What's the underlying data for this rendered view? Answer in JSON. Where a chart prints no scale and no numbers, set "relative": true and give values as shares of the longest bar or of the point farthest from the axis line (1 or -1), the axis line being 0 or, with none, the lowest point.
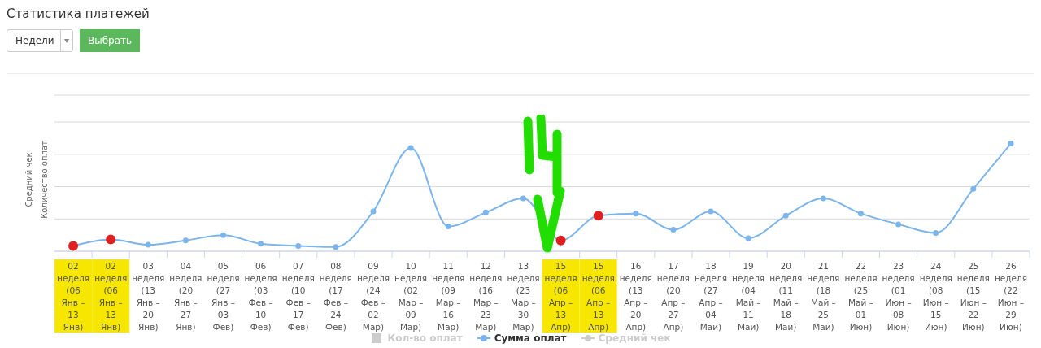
{
  "chart_data": {
    "type": "line",
    "title": "Статистика платежей",
    "ylabel": "Количество оплат",
    "y2label": "Средний чек",
    "annotations": [
      "Недели",
      "Выбрать"
    ],
    "relative": true,
    "grid": "y",
    "legend": "bottom",
    "marker": "circle",
    "categories": [
      "02 неделя (06 Янв – 13 Янв)",
      "02 неделя (06 Янв – 13 Янв)",
      "03 неделя (13 Янв – 20 Янв)",
      "04 неделя (20 Янв – 27 Янв)",
      "05 неделя (27 Янв – 03 Фев)",
      "06 неделя (03 Фев – 10 Фев)",
      "07 неделя (10 Фев – 17 Фев)",
      "08 неделя (17 Фев – 24 Фев)",
      "09 неделя (24 Фев – 02 Мар)",
      "10 неделя (02 Мар – 09 Мар)",
      "11 неделя (09 Мар – 16 Мар)",
      "12 неделя (16 Мар – 23 Мар)",
      "13 неделя (23 Мар – 30 Мар)",
      "15 неделя (06 Апр – 13 Апр)",
      "15 неделя (06 Апр – 13 Апр)",
      "16 неделя (13 Апр – 20 Апр)",
      "17 неделя (20 Апр – 27 Апр)",
      "18 неделя (27 Апр – 04 Май)",
      "19 неделя (04 Май – 11 Май)",
      "20 неделя (11 Май – 18 Май)",
      "21 неделя (18 Май – 25 Май)",
      "22 неделя (25 Май – 01 Июн)",
      "23 неделя (01 Июн – 08 Июн)",
      "24 неделя (08 Июн – 15 Июн)",
      "25 неделя (15 Июн – 22 Июн)",
      "26 неделя (22 Июн – 29 Июн)"
    ],
    "series": [
      {
        "name": "Кол-во оплат",
        "type": "bar",
        "color": "#cccccc",
        "values": [
          null,
          null,
          null,
          null,
          null,
          null,
          null,
          null,
          null,
          null,
          null,
          null,
          null,
          null,
          null,
          null,
          null,
          null,
          null,
          null,
          null,
          null,
          null,
          null,
          null,
          null
        ]
      },
      {
        "name": "Сумма оплат",
        "color": "#7cb5ec",
        "colors": [
          "#e02020",
          "#e02020",
          "#7cb5ec",
          "#7cb5ec",
          "#7cb5ec",
          "#7cb5ec",
          "#7cb5ec",
          "#7cb5ec",
          "#7cb5ec",
          "#7cb5ec",
          "#7cb5ec",
          "#7cb5ec",
          "#7cb5ec",
          "#e02020",
          "#e02020",
          "#7cb5ec",
          "#7cb5ec",
          "#7cb5ec",
          "#7cb5ec",
          "#7cb5ec",
          "#7cb5ec",
          "#7cb5ec",
          "#7cb5ec",
          "#7cb5ec",
          "#7cb5ec",
          "#7cb5ec"
        ],
        "values": [
          0.05,
          0.11,
          0.06,
          0.1,
          0.15,
          0.07,
          0.05,
          0.04,
          0.37,
          0.96,
          0.23,
          0.36,
          0.49,
          0.1,
          0.33,
          0.35,
          0.2,
          0.37,
          0.12,
          0.33,
          0.49,
          0.35,
          0.25,
          0.17,
          0.58,
          1
        ]
      },
      {
        "name": "Средний чек",
        "color": "#cccccc",
        "values": [
          null,
          null,
          null,
          null,
          null,
          null,
          null,
          null,
          null,
          null,
          null,
          null,
          null,
          null,
          null,
          null,
          null,
          null,
          null,
          null,
          null,
          null,
          null,
          null,
          null,
          null
        ]
      }
    ]
  }
}
